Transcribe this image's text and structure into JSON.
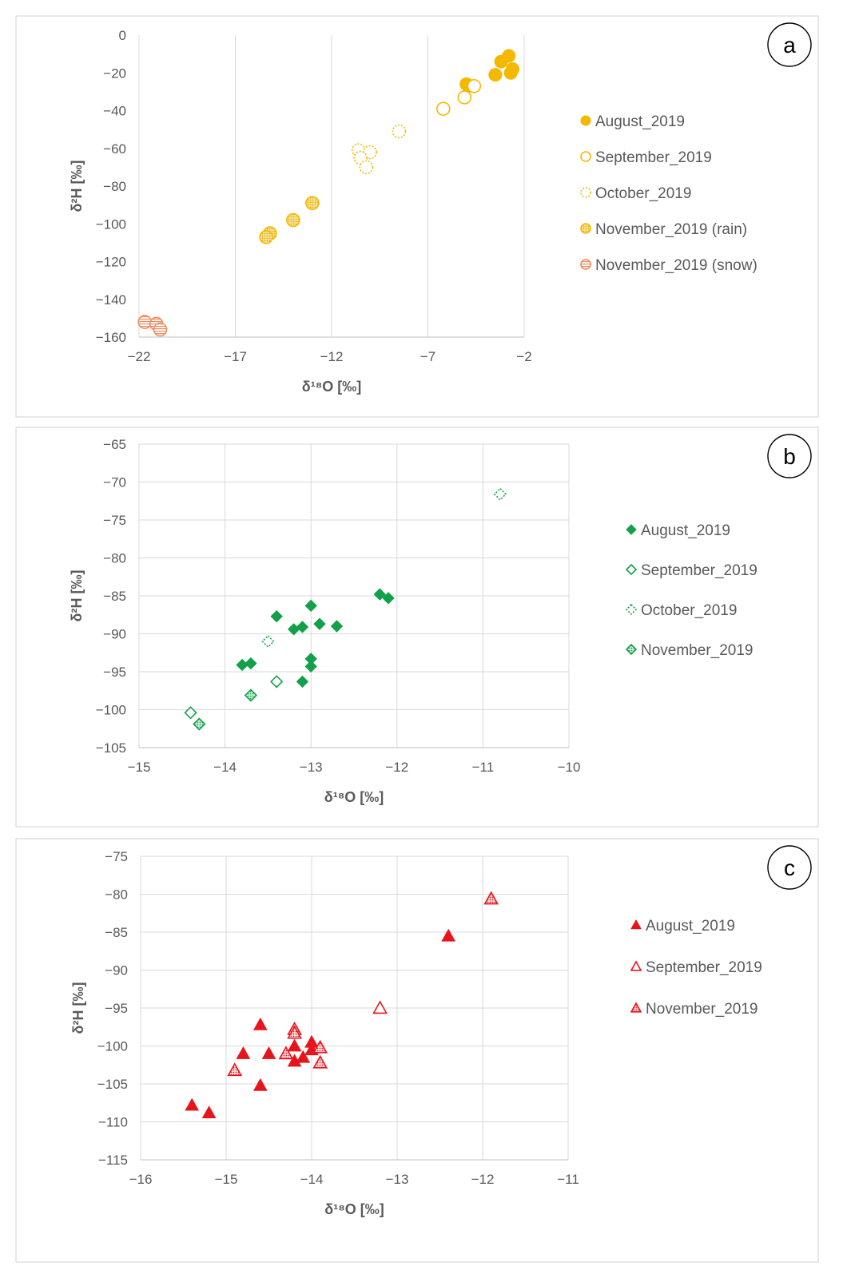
{
  "chart_data": [
    {
      "type": "scatter",
      "panel_label": "a",
      "xlabel": "δ¹⁸O [‰]",
      "ylabel": "δ²H [‰]",
      "xlim": [
        -22,
        -2
      ],
      "ylim": [
        -160,
        0
      ],
      "xticks": [
        -22,
        -17,
        -12,
        -7,
        -2
      ],
      "yticks": [
        0,
        -20,
        -40,
        -60,
        -80,
        -100,
        -120,
        -140,
        -160
      ],
      "tick_labels_x": [
        "−22",
        "−17",
        "−12",
        "−7",
        "−2"
      ],
      "tick_labels_y": [
        "0",
        "−20",
        "−40",
        "−60",
        "−80",
        "−100",
        "−120",
        "−140",
        "−160"
      ],
      "grid": "vertical",
      "legend_position": "right",
      "series": [
        {
          "name": "August_2019",
          "marker": "circle-filled",
          "color": "#f5b800",
          "points": [
            [
              -2.8,
              -11
            ],
            [
              -3.2,
              -14
            ],
            [
              -3.5,
              -21
            ],
            [
              -2.6,
              -18
            ],
            [
              -2.7,
              -20
            ],
            [
              -4.9,
              -27
            ],
            [
              -5.0,
              -26
            ]
          ]
        },
        {
          "name": "September_2019",
          "marker": "circle-open",
          "color": "#f5b800",
          "points": [
            [
              -5.1,
              -33
            ],
            [
              -4.6,
              -27
            ],
            [
              -6.2,
              -39
            ]
          ]
        },
        {
          "name": "October_2019",
          "marker": "circle-dotted",
          "color": "#f5b800",
          "points": [
            [
              -10.6,
              -61
            ],
            [
              -10.0,
              -62
            ],
            [
              -10.5,
              -65
            ],
            [
              -10.2,
              -70
            ],
            [
              -8.5,
              -51
            ]
          ]
        },
        {
          "name": "November_2019 (rain)",
          "marker": "circle-hatched",
          "color": "#f5b800",
          "points": [
            [
              -13.0,
              -89
            ],
            [
              -14.0,
              -98
            ],
            [
              -15.2,
              -105
            ],
            [
              -15.4,
              -107
            ]
          ]
        },
        {
          "name": "November_2019 (snow)",
          "marker": "circle-striped",
          "color": "#f08a5d",
          "points": [
            [
              -21.7,
              -152
            ],
            [
              -21.1,
              -153
            ],
            [
              -20.9,
              -156
            ]
          ]
        }
      ]
    },
    {
      "type": "scatter",
      "panel_label": "b",
      "xlabel": "δ¹⁸O [‰]",
      "ylabel": "δ²H [‰]",
      "xlim": [
        -15,
        -10
      ],
      "ylim": [
        -105,
        -65
      ],
      "xticks": [
        -15,
        -14,
        -13,
        -12,
        -11,
        -10
      ],
      "yticks": [
        -65,
        -70,
        -75,
        -80,
        -85,
        -90,
        -95,
        -100,
        -105
      ],
      "tick_labels_x": [
        "−15",
        "−14",
        "−13",
        "−12",
        "−11",
        "−10"
      ],
      "tick_labels_y": [
        "−65",
        "−70",
        "−75",
        "−80",
        "−85",
        "−90",
        "−95",
        "−100",
        "−105"
      ],
      "grid": "both",
      "legend_position": "right",
      "series": [
        {
          "name": "August_2019",
          "marker": "diamond-filled",
          "color": "#12a14a",
          "points": [
            [
              -13.8,
              -94.1
            ],
            [
              -13.7,
              -93.9
            ],
            [
              -13.4,
              -87.7
            ],
            [
              -13.2,
              -89.4
            ],
            [
              -13.1,
              -89.1
            ],
            [
              -13.0,
              -86.3
            ],
            [
              -12.9,
              -88.7
            ],
            [
              -12.7,
              -89.0
            ],
            [
              -13.0,
              -93.3
            ],
            [
              -13.0,
              -94.3
            ],
            [
              -13.1,
              -96.3
            ],
            [
              -12.2,
              -84.8
            ],
            [
              -12.1,
              -85.3
            ]
          ]
        },
        {
          "name": "September_2019",
          "marker": "diamond-open",
          "color": "#12a14a",
          "points": [
            [
              -14.4,
              -100.4
            ],
            [
              -13.4,
              -96.3
            ]
          ]
        },
        {
          "name": "October_2019",
          "marker": "diamond-dotted",
          "color": "#12a14a",
          "points": [
            [
              -13.5,
              -91.0
            ],
            [
              -10.8,
              -71.6
            ]
          ]
        },
        {
          "name": "November_2019",
          "marker": "diamond-hatched",
          "color": "#12a14a",
          "points": [
            [
              -14.3,
              -101.9
            ],
            [
              -13.7,
              -98.1
            ]
          ]
        }
      ]
    },
    {
      "type": "scatter",
      "panel_label": "c",
      "xlabel": "δ¹⁸O [‰]",
      "ylabel": "δ²H [‰]",
      "xlim": [
        -16,
        -11
      ],
      "ylim": [
        -115,
        -75
      ],
      "xticks": [
        -16,
        -15,
        -14,
        -13,
        -12,
        -11
      ],
      "yticks": [
        -75,
        -80,
        -85,
        -90,
        -95,
        -100,
        -105,
        -110,
        -115
      ],
      "tick_labels_x": [
        "−16",
        "−15",
        "−14",
        "−13",
        "−12",
        "−11"
      ],
      "tick_labels_y": [
        "−75",
        "−80",
        "−85",
        "−90",
        "−95",
        "−100",
        "−105",
        "−110",
        "−115"
      ],
      "grid": "both",
      "legend_position": "right",
      "series": [
        {
          "name": "August_2019",
          "marker": "triangle-filled",
          "color": "#e8141c",
          "points": [
            [
              -15.4,
              -107.8
            ],
            [
              -15.2,
              -108.8
            ],
            [
              -14.8,
              -101.0
            ],
            [
              -14.6,
              -97.2
            ],
            [
              -14.6,
              -105.2
            ],
            [
              -14.5,
              -101.0
            ],
            [
              -14.2,
              -100.0
            ],
            [
              -14.2,
              -102.0
            ],
            [
              -14.1,
              -101.5
            ],
            [
              -14.0,
              -99.5
            ],
            [
              -14.0,
              -100.5
            ],
            [
              -12.4,
              -85.5
            ]
          ]
        },
        {
          "name": "September_2019",
          "marker": "triangle-open",
          "color": "#e8141c",
          "points": [
            [
              -13.2,
              -95.0
            ]
          ]
        },
        {
          "name": "November_2019",
          "marker": "triangle-hatched",
          "color": "#e8141c",
          "points": [
            [
              -14.9,
              -103.2
            ],
            [
              -14.3,
              -101.0
            ],
            [
              -14.2,
              -97.8
            ],
            [
              -14.2,
              -98.3
            ],
            [
              -13.9,
              -100.2
            ],
            [
              -13.9,
              -102.2
            ],
            [
              -11.9,
              -80.6
            ]
          ]
        }
      ]
    }
  ]
}
